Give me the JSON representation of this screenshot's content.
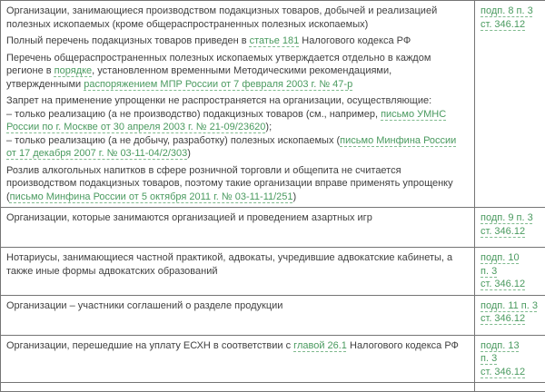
{
  "colors": {
    "link_green": "#4a9a5f",
    "body_text": "#3f3f3f",
    "table_border": "#757575",
    "background": "#ffffff"
  },
  "table": {
    "rows": [
      {
        "p1": "Организации, занимающиеся производством подакцизных товаров, добычей и реализацией полезных ископаемых (кроме общераспространенных полезных ископаемых)",
        "p2a": "Полный перечень подакцизных товаров приведен в ",
        "p2_link": "статье 181",
        "p2b": " Налогового кодекса РФ",
        "p3a": "Перечень общераспространенных полезных ископаемых утверждается отдельно в каждом регионе в ",
        "p3_link1": "порядке",
        "p3b": ", установленном временными Методическими рекомендациями, утвержденными ",
        "p3_link2": "распоряжением МПР России от 7 февраля 2003 г. № 47-р",
        "p4a": "Запрет на применение упрощенки не распространяется на организации, осуществляющие:",
        "p4b": "– только реализацию (а не производство) подакцизных товаров (см., например, ",
        "p4_link1": "письмо УМНС России по г. Москве от 30 апреля 2003 г. № 21-09/23620",
        "p4c": ");",
        "p4d": "– только реализацию (а не добычу, разработку) полезных ископаемых (",
        "p4_link2": "письмо Минфина России от 17 декабря 2007 г. № 03-11-04/2/303",
        "p4e": ")",
        "p5a": "Розлив алкогольных напитков в сфере розничной торговли и общепита не считается производством подакцизных товаров, поэтому такие организации вправе применять упрощенку (",
        "p5_link": "письмо Минфина России от 5 октября 2011 г. № 03-11-11/251",
        "p5b": ")",
        "ref": "подп. 8 п. 3\nст. 346.12"
      },
      {
        "text": "Организации, которые занимаются организацией и проведением азартных игр",
        "ref": "подп. 9 п. 3\nст. 346.12"
      },
      {
        "text": "Нотариусы, занимающиеся частной практикой, адвокаты, учредившие адвокатские кабинеты, а также иные формы адвокатских образований",
        "ref": "подп. 10\nп. 3\nст. 346.12"
      },
      {
        "text": "Организации – участники соглашений о разделе продукции",
        "ref": "подп. 11 п. 3\nст. 346.12"
      },
      {
        "texta": "Организации, перешедшие на уплату ЕСХН в соответствии с ",
        "text_link": "главой 26.1",
        "textb": " Налогового кодекса РФ",
        "ref": "подп. 13\nп. 3\nст. 346.12"
      }
    ]
  }
}
